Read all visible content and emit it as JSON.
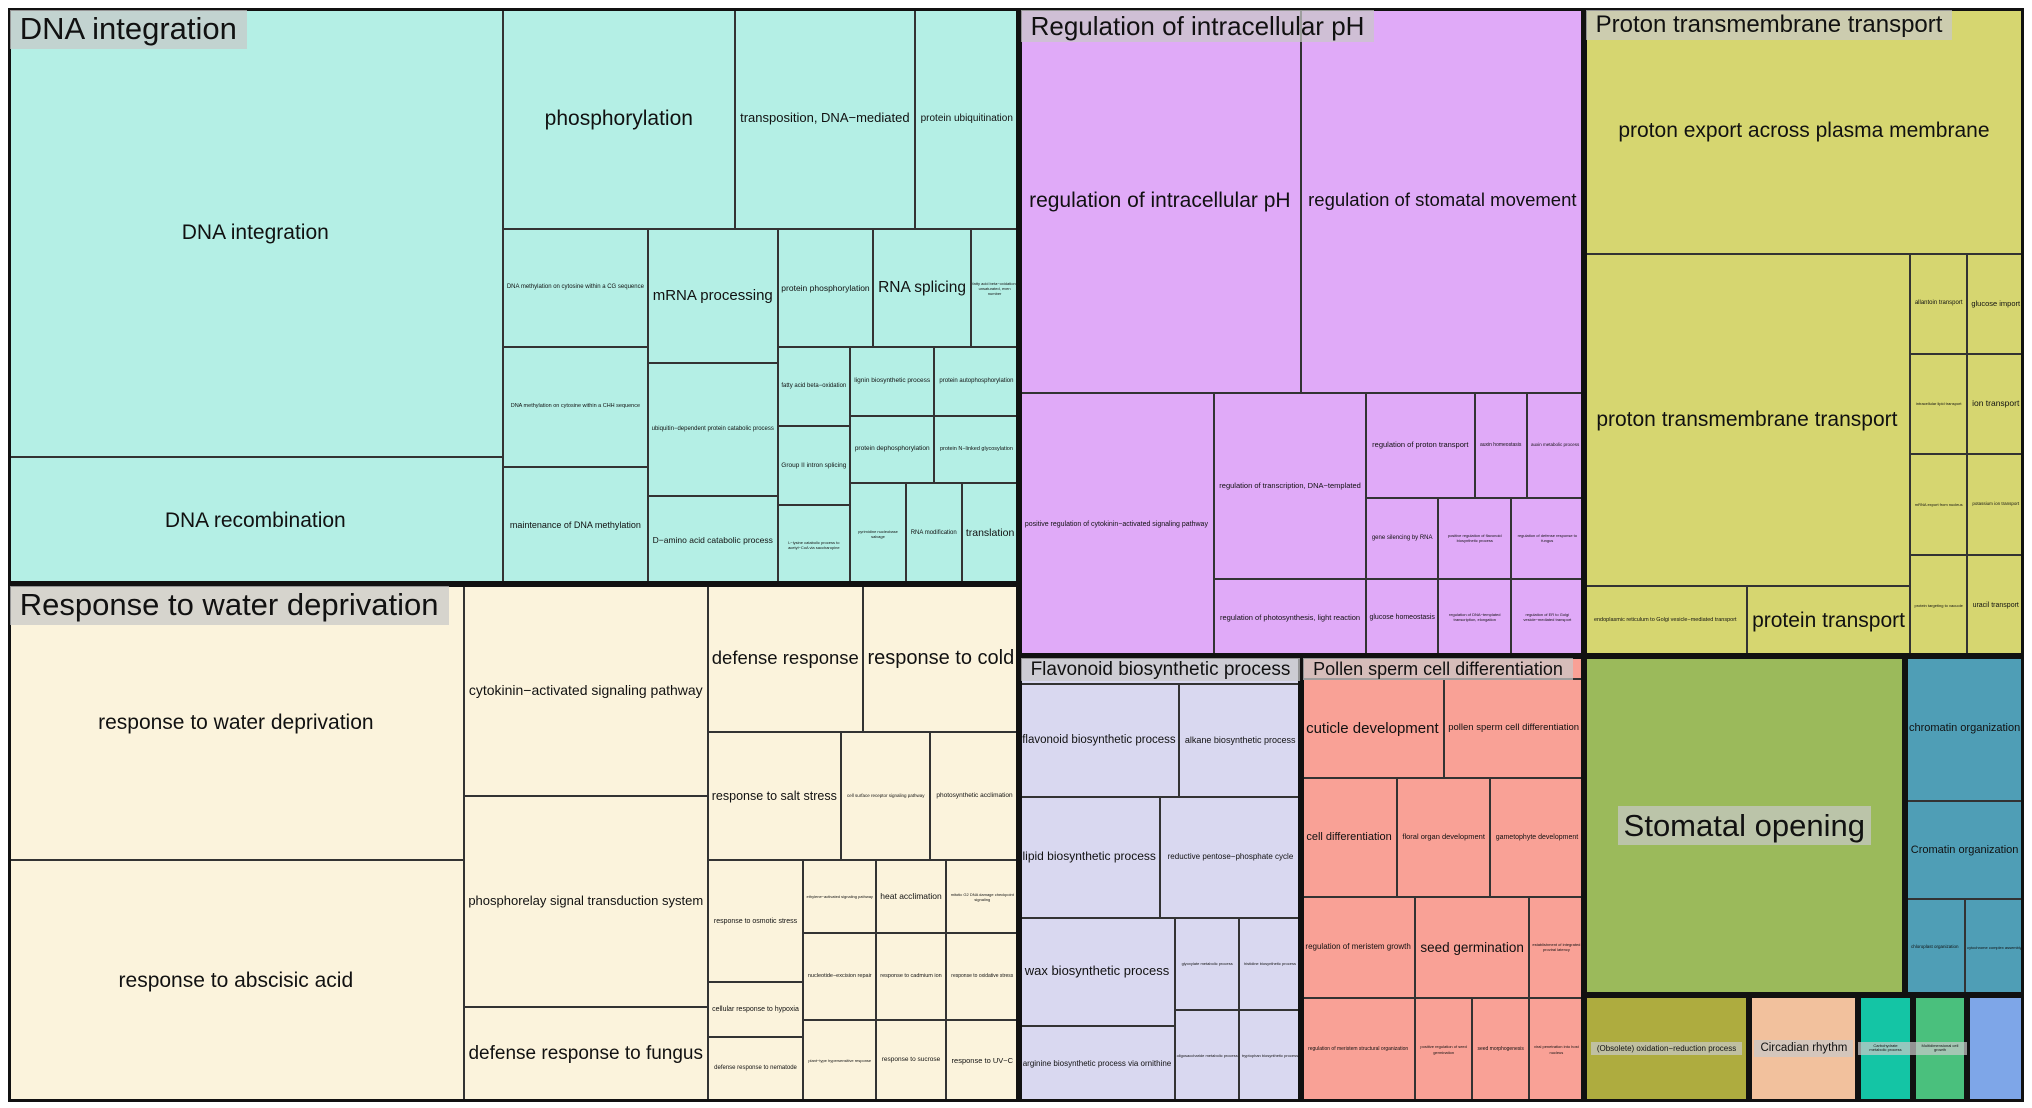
{
  "groups": [
    {
      "label": "DNA integration",
      "color": "#b4efe5",
      "cells": [
        "DNA integration",
        "DNA recombination",
        "phosphorylation",
        "transposition, DNA−mediated",
        "protein ubiquitination",
        "DNA methylation on cytosine within a CG sequence",
        "DNA methylation on cytosine within a CHH sequence",
        "maintenance of DNA methylation",
        "mRNA processing",
        "ubiquitin−dependent protein catabolic process",
        "D−amino acid catabolic process",
        "protein phosphorylation",
        "RNA splicing",
        "fatty acid beta−oxidation, unsaturated, even number",
        "fatty acid beta−oxidation",
        "lignin biosynthetic process",
        "protein autophosphorylation",
        "protein dephosphorylation",
        "protein N−linked glycosylation",
        "Group II intron splicing",
        "L−lysine catabolic process to acetyl−CoA via saccharopine",
        "pyrimidine nucleobase salvage",
        "RNA modification",
        "translation"
      ]
    },
    {
      "label": "Response to water deprivation",
      "color": "#fbf3dc",
      "cells": [
        "response to water deprivation",
        "response to abscisic acid",
        "cytokinin−activated signaling pathway",
        "phosphorelay signal transduction system",
        "defense response to fungus",
        "defense response",
        "response to cold",
        "response to salt stress",
        "cell surface receptor signaling pathway",
        "photosynthetic acclimation",
        "response to osmotic stress",
        "ethylene−activated signaling pathway",
        "heat acclimation",
        "mitotic G2 DNA damage checkpoint signaling",
        "nucleotide−excision repair",
        "response to cadmium ion",
        "response to oxidative stress",
        "cellular response to hypoxia",
        "defense response to nematode",
        "plant−type hypersensitive response",
        "response to sucrose",
        "response to UV−C"
      ]
    },
    {
      "label": "Regulation of intracellular pH",
      "color": "#e0aaf8",
      "cells": [
        "regulation of intracellular pH",
        "regulation of stomatal movement",
        "positive regulation of cytokinin−activated signaling pathway",
        "regulation of transcription, DNA−templated",
        "regulation of photosynthesis, light reaction",
        "regulation of proton transport",
        "auxin homeostasis",
        "auxin metabolic process",
        "gene silencing by RNA",
        "positive regulation of flavonoid biosynthetic process",
        "regulation of defense response to fungus",
        "glucose homeostasis",
        "regulation of DNA−templated transcription, elongation",
        "regulation of ER to Golgi vesicle−mediated transport"
      ]
    },
    {
      "label": "Proton transmembrane transport",
      "color": "#d6d670",
      "cells": [
        "proton export across plasma membrane",
        "proton transmembrane transport",
        "endoplasmic reticulum to Golgi vesicle−mediated transport",
        "protein transport",
        "allantoin transport",
        "glucose import",
        "intracellular lipid transport",
        "ion transport",
        "mRNA export from nucleus",
        "potassium ion transport",
        "protein targeting to vacuole",
        "uracil transport"
      ]
    },
    {
      "label": "Flavonoid biosynthetic process",
      "color": "#d9d8f0",
      "cells": [
        "flavonoid biosynthetic process",
        "alkane biosynthetic process",
        "lipid biosynthetic process",
        "reductive pentose−phosphate cycle",
        "wax biosynthetic process",
        "arginine biosynthetic process via ornithine",
        "glyoxylate metabolic process",
        "histidine biosynthetic process",
        "oligosaccharide metabolic process",
        "tryptophan biosynthetic process"
      ]
    },
    {
      "label": "Pollen sperm cell differentiation",
      "color": "#f9a196",
      "cells": [
        "cuticle development",
        "pollen sperm cell differentiation",
        "cell differentiation",
        "floral organ development",
        "gametophyte development",
        "regulation of meristem growth",
        "seed germination",
        "establishment of integrated proviral latency",
        "regulation of meristem structural organization",
        "positive regulation of seed germination",
        "seed morphogenesis",
        "viral penetration into host nucleus"
      ]
    },
    {
      "label": "Stomatal opening",
      "color": "#9bba5b"
    },
    {
      "label": "chromatin organization",
      "color": "#4f9eb6",
      "cells": [
        "chromatin organization",
        "Cromatin organization",
        "chloroplast organization",
        "cytochrome complex assembly"
      ]
    },
    {
      "label": "(Obsolete) oxidation−reduction process",
      "color": "#aeac3f"
    },
    {
      "label": "Circadian rhythm",
      "color": "#f2c19d"
    },
    {
      "label": "Carbohydrate metabolic process",
      "color": "#14c5a5"
    },
    {
      "label": "Multidimensional cell growth",
      "color": "#4ac07d"
    },
    {
      "color": "#7ea6e8"
    }
  ]
}
